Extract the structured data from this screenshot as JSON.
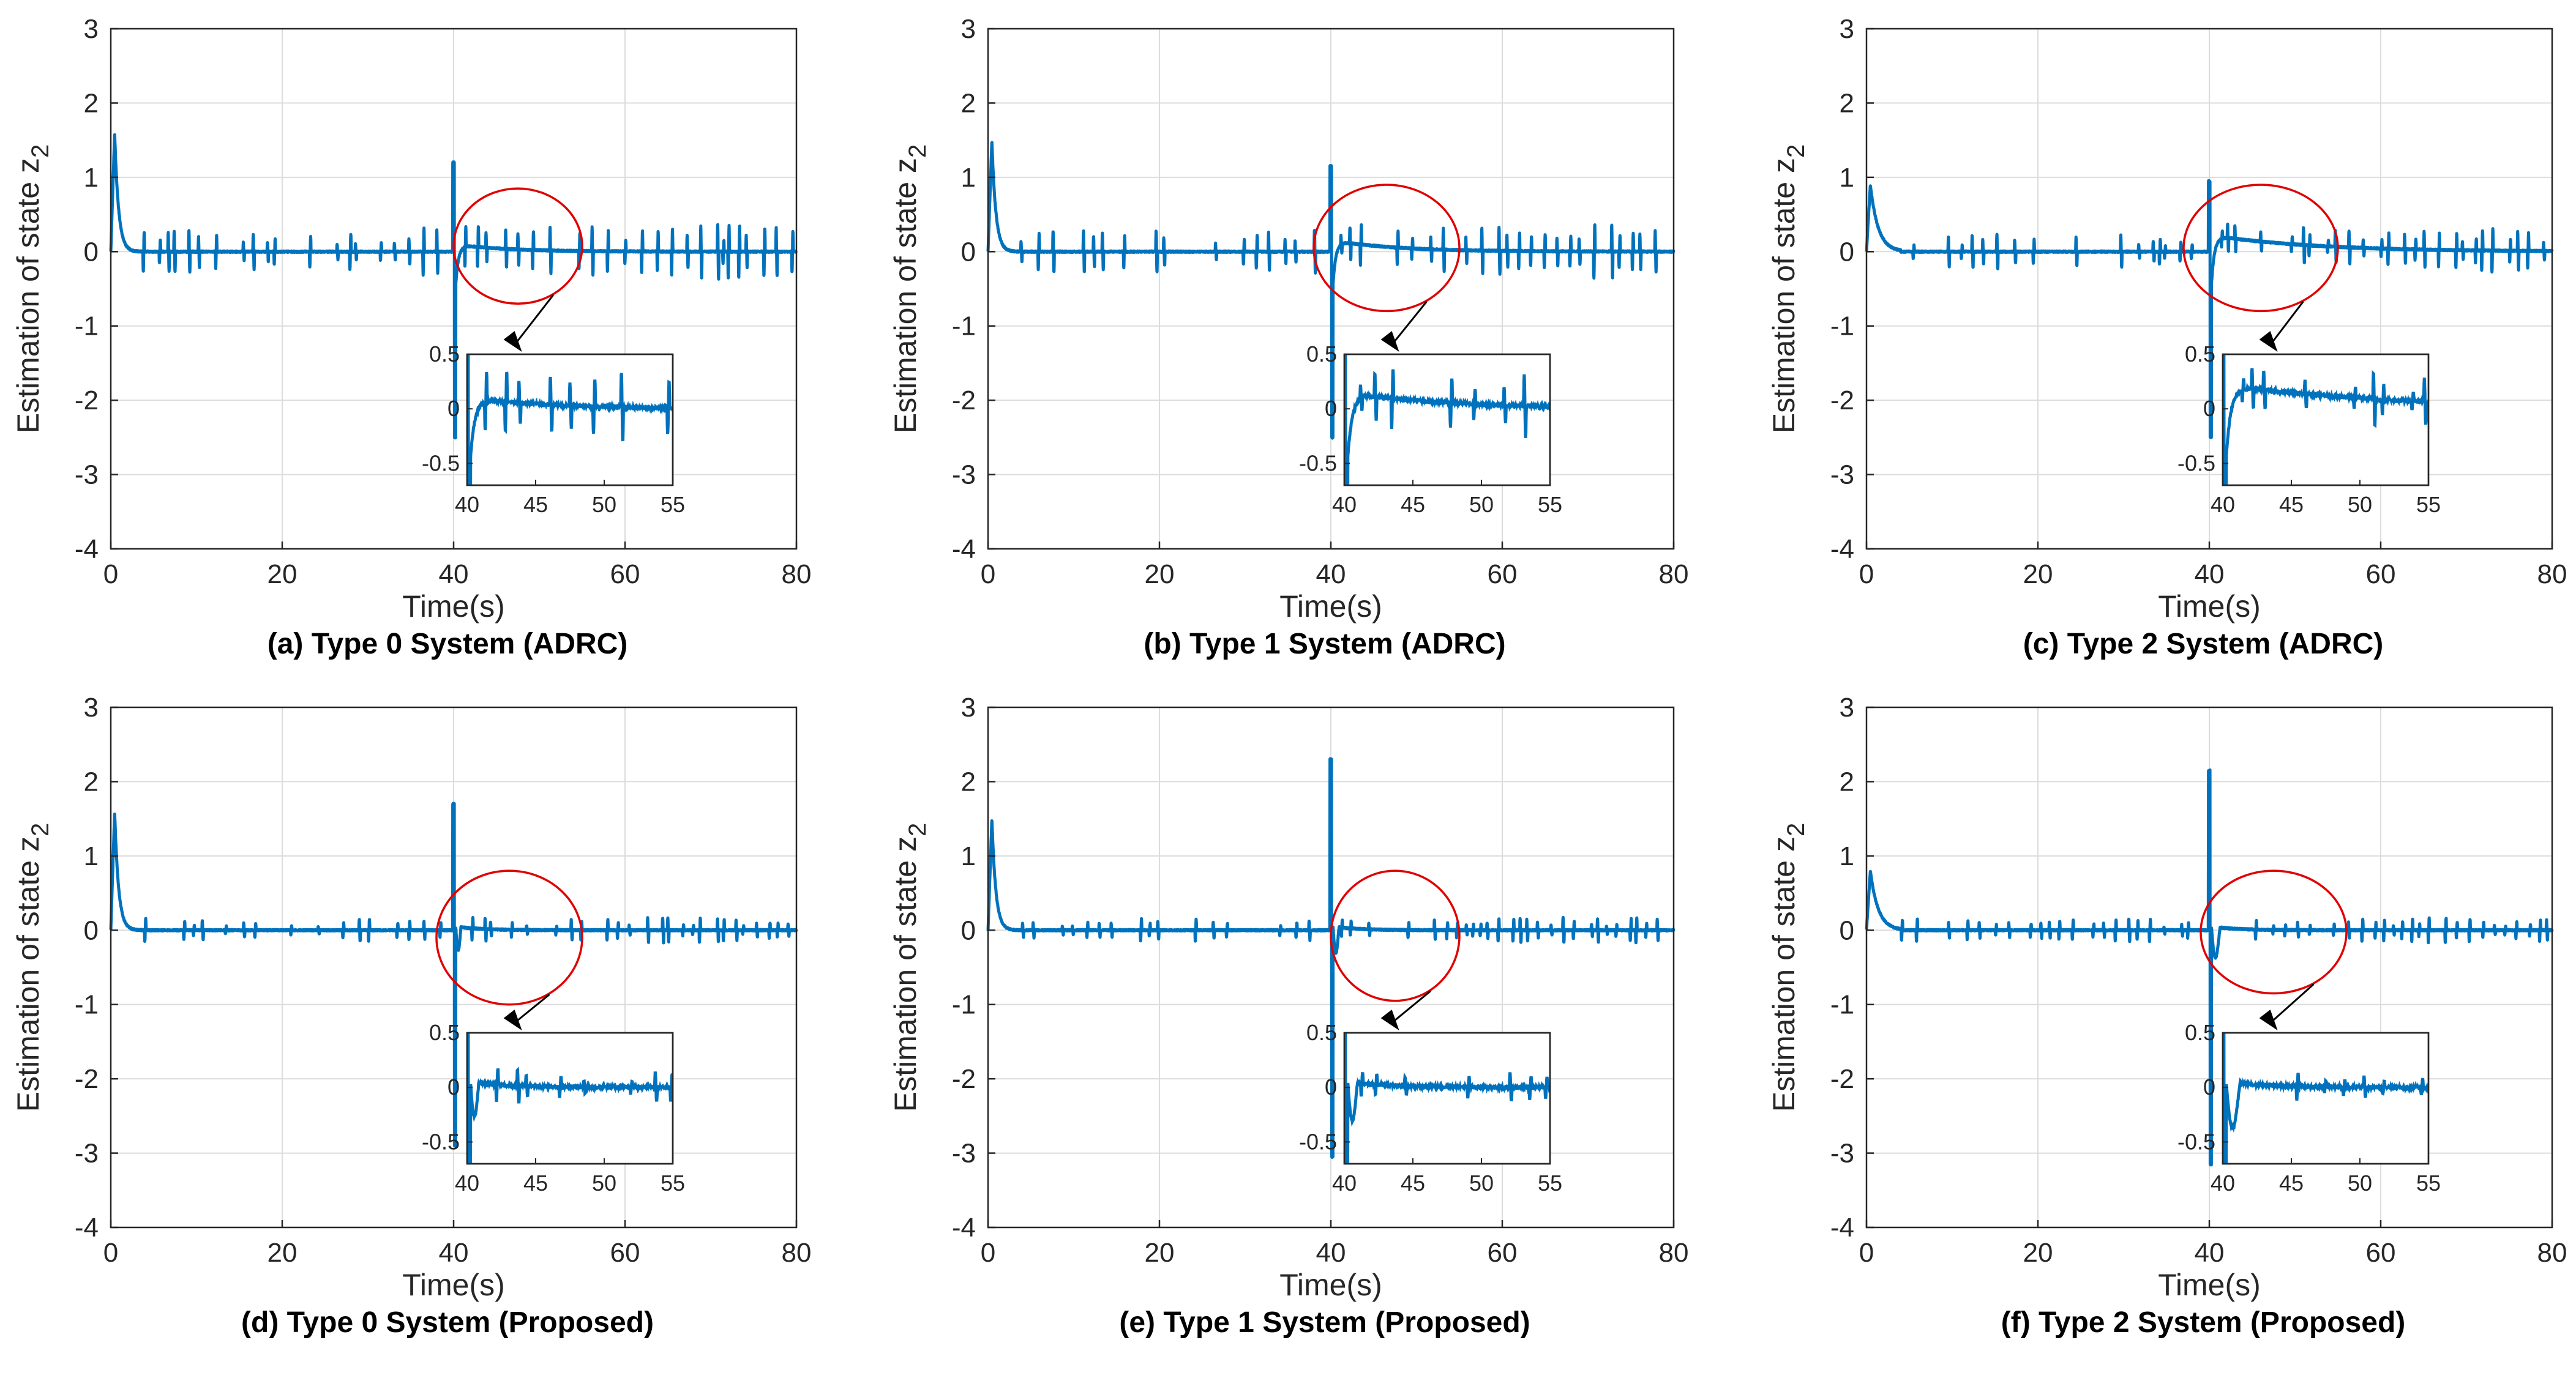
{
  "figure": {
    "colors": {
      "line": "#0072BD",
      "grid": "#dcdcdc",
      "axis": "#262626",
      "circle": "#e00000",
      "arrow": "#000000",
      "background": "#ffffff"
    }
  },
  "chart_data": [
    {
      "id": "a",
      "type": "line",
      "caption": "(a) Type 0 System (ADRC)",
      "xlabel": "Time(s)",
      "ylabel_main": "Estimation of state z",
      "ylabel_sub": "2",
      "xlim": [
        0,
        80
      ],
      "ylim": [
        -4,
        3
      ],
      "xticks": [
        0,
        20,
        40,
        60,
        80
      ],
      "yticks": [
        -4,
        -3,
        -2,
        -1,
        0,
        1,
        2,
        3
      ],
      "grid": true,
      "series": [
        {
          "name": "z2 estimate",
          "startup_peak": 1.6,
          "startup_decay": 1.0,
          "dist_peak": 1.2,
          "dist_min": -2.5,
          "dist_recovery": 0.1,
          "recovery_tau": 2.0,
          "spike_amplitude": 0.25
        }
      ],
      "inset": {
        "xlim": [
          40,
          55
        ],
        "ylim": [
          -0.7,
          0.5
        ],
        "xticks": [
          40,
          45,
          50,
          55
        ],
        "yticks": [
          -0.5,
          0,
          0.5
        ],
        "xtick_labels": [
          "40",
          "45",
          "50",
          "55"
        ],
        "ytick_labels": [
          "-0.5",
          "0",
          "0.5"
        ]
      },
      "highlight": {
        "type": "ellipse",
        "x_range": [
          40,
          55
        ],
        "y_range": [
          -0.7,
          0.85
        ]
      }
    },
    {
      "id": "b",
      "type": "line",
      "caption": "(b) Type 1 System (ADRC)",
      "xlabel": "Time(s)",
      "ylabel_main": "Estimation of state z",
      "ylabel_sub": "2",
      "xlim": [
        0,
        80
      ],
      "ylim": [
        -4,
        3
      ],
      "xticks": [
        0,
        20,
        40,
        60,
        80
      ],
      "yticks": [
        -4,
        -3,
        -2,
        -1,
        0,
        1,
        2,
        3
      ],
      "grid": true,
      "series": [
        {
          "name": "z2 estimate",
          "startup_peak": 1.5,
          "startup_decay": 1.0,
          "dist_peak": 1.15,
          "dist_min": -2.5,
          "dist_recovery": 0.15,
          "recovery_tau": 2.5,
          "spike_amplitude": 0.25
        }
      ],
      "inset": {
        "xlim": [
          40,
          55
        ],
        "ylim": [
          -0.7,
          0.5
        ],
        "xticks": [
          40,
          45,
          50,
          55
        ],
        "yticks": [
          -0.5,
          0,
          0.5
        ],
        "xtick_labels": [
          "40",
          "45",
          "50",
          "55"
        ],
        "ytick_labels": [
          "-0.5",
          "0",
          "0.5"
        ]
      },
      "highlight": {
        "type": "ellipse",
        "x_range": [
          38,
          55
        ],
        "y_range": [
          -0.8,
          0.9
        ]
      }
    },
    {
      "id": "c",
      "type": "line",
      "caption": "(c) Type 2 System (ADRC)",
      "xlabel": "Time(s)",
      "ylabel_main": "Estimation of state z",
      "ylabel_sub": "2",
      "xlim": [
        0,
        80
      ],
      "ylim": [
        -4,
        3
      ],
      "xticks": [
        0,
        20,
        40,
        60,
        80
      ],
      "yticks": [
        -4,
        -3,
        -2,
        -1,
        0,
        1,
        2,
        3
      ],
      "grid": true,
      "series": [
        {
          "name": "z2 estimate",
          "startup_peak": 0.9,
          "startup_decay": 2.0,
          "dist_peak": 0.95,
          "dist_min": -2.5,
          "dist_recovery": 0.22,
          "recovery_tau": 4.0,
          "spike_amplitude": 0.2
        }
      ],
      "inset": {
        "xlim": [
          40,
          55
        ],
        "ylim": [
          -0.7,
          0.5
        ],
        "xticks": [
          40,
          45,
          50,
          55
        ],
        "yticks": [
          -0.5,
          0,
          0.5
        ],
        "xtick_labels": [
          "40",
          "45",
          "50",
          "55"
        ],
        "ytick_labels": [
          "-0.5",
          "0",
          "0.5"
        ]
      },
      "highlight": {
        "type": "ellipse",
        "x_range": [
          37,
          55
        ],
        "y_range": [
          -0.8,
          0.9
        ]
      }
    },
    {
      "id": "d",
      "type": "line",
      "caption": "(d) Type 0 System (Proposed)",
      "xlabel": "Time(s)",
      "ylabel_main": "Estimation of state z",
      "ylabel_sub": "2",
      "xlim": [
        0,
        80
      ],
      "ylim": [
        -4,
        3
      ],
      "xticks": [
        0,
        20,
        40,
        60,
        80
      ],
      "yticks": [
        -4,
        -3,
        -2,
        -1,
        0,
        1,
        2,
        3
      ],
      "grid": true,
      "series": [
        {
          "name": "z2 estimate",
          "startup_peak": 1.6,
          "startup_decay": 1.0,
          "dist_peak": 1.7,
          "dist_min": -2.9,
          "dist_recovery": -0.35,
          "recovery_tau": 0.6,
          "spike_amplitude": 0.12
        }
      ],
      "inset": {
        "xlim": [
          40,
          55
        ],
        "ylim": [
          -0.7,
          0.5
        ],
        "xticks": [
          40,
          45,
          50,
          55
        ],
        "yticks": [
          -0.5,
          0,
          0.5
        ],
        "xtick_labels": [
          "40",
          "45",
          "50",
          "55"
        ],
        "ytick_labels": [
          "-0.5",
          "0",
          "0.5"
        ]
      },
      "highlight": {
        "type": "ellipse",
        "x_range": [
          38,
          55
        ],
        "y_range": [
          -1.0,
          0.8
        ]
      }
    },
    {
      "id": "e",
      "type": "line",
      "caption": "(e) Type 1 System (Proposed)",
      "xlabel": "Time(s)",
      "ylabel_main": "Estimation of state z",
      "ylabel_sub": "2",
      "xlim": [
        0,
        80
      ],
      "ylim": [
        -4,
        3
      ],
      "xticks": [
        0,
        20,
        40,
        60,
        80
      ],
      "yticks": [
        -4,
        -3,
        -2,
        -1,
        0,
        1,
        2,
        3
      ],
      "grid": true,
      "series": [
        {
          "name": "z2 estimate",
          "startup_peak": 1.5,
          "startup_decay": 1.0,
          "dist_peak": 2.3,
          "dist_min": -3.05,
          "dist_recovery": -0.4,
          "recovery_tau": 0.7,
          "spike_amplitude": 0.12
        }
      ],
      "inset": {
        "xlim": [
          40,
          55
        ],
        "ylim": [
          -0.7,
          0.5
        ],
        "xticks": [
          40,
          45,
          50,
          55
        ],
        "yticks": [
          -0.5,
          0,
          0.5
        ],
        "xtick_labels": [
          "40",
          "45",
          "50",
          "55"
        ],
        "ytick_labels": [
          "-0.5",
          "0",
          "0.5"
        ]
      },
      "highlight": {
        "type": "ellipse",
        "x_range": [
          40,
          55
        ],
        "y_range": [
          -0.95,
          0.8
        ]
      }
    },
    {
      "id": "f",
      "type": "line",
      "caption": "(f) Type 2 System (Proposed)",
      "xlabel": "Time(s)",
      "ylabel_main": "Estimation of state z",
      "ylabel_sub": "2",
      "xlim": [
        0,
        80
      ],
      "ylim": [
        -4,
        3
      ],
      "xticks": [
        0,
        20,
        40,
        60,
        80
      ],
      "yticks": [
        -4,
        -3,
        -2,
        -1,
        0,
        1,
        2,
        3
      ],
      "grid": true,
      "series": [
        {
          "name": "z2 estimate",
          "startup_peak": 0.8,
          "startup_decay": 2.0,
          "dist_peak": 2.15,
          "dist_min": -3.15,
          "dist_recovery": -0.5,
          "recovery_tau": 1.0,
          "spike_amplitude": 0.12
        }
      ],
      "inset": {
        "xlim": [
          40,
          55
        ],
        "ylim": [
          -0.7,
          0.5
        ],
        "xticks": [
          40,
          45,
          50,
          55
        ],
        "yticks": [
          -0.5,
          0,
          0.5
        ],
        "xtick_labels": [
          "40",
          "45",
          "50",
          "55"
        ],
        "ytick_labels": [
          "-0.5",
          "0",
          "0.5"
        ]
      },
      "highlight": {
        "type": "ellipse",
        "x_range": [
          39,
          56
        ],
        "y_range": [
          -0.85,
          0.8
        ]
      }
    }
  ]
}
